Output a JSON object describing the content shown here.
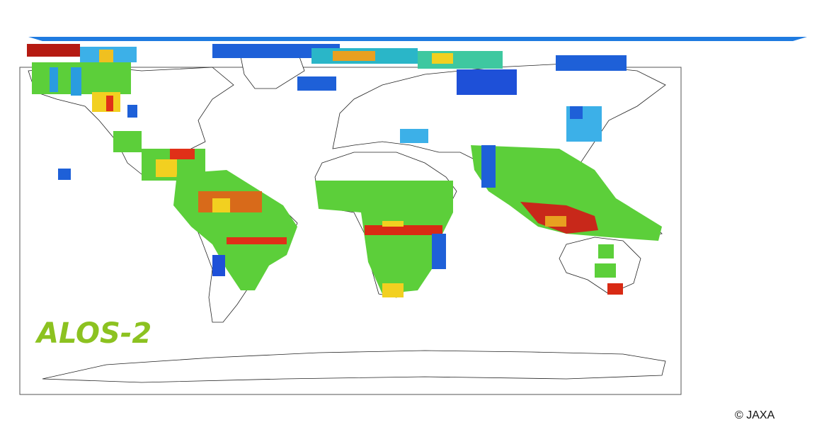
{
  "logo": {
    "text": "ALOS-2"
  },
  "copyright": "© JAXA"
}
